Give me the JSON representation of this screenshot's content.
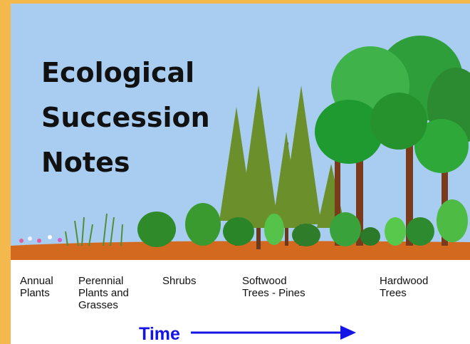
{
  "title_lines": [
    "Ecological",
    "Succession",
    "Notes"
  ],
  "stages": [
    {
      "lines": [
        "Annual",
        "Plants"
      ]
    },
    {
      "lines": [
        "Perennial",
        "Plants and",
        "Grasses"
      ]
    },
    {
      "lines": [
        "Shrubs"
      ]
    },
    {
      "lines": [
        "Softwood",
        "Trees - Pines"
      ]
    },
    {
      "lines": [
        "Hardwood",
        "Trees"
      ]
    }
  ],
  "time_label": "Time"
}
